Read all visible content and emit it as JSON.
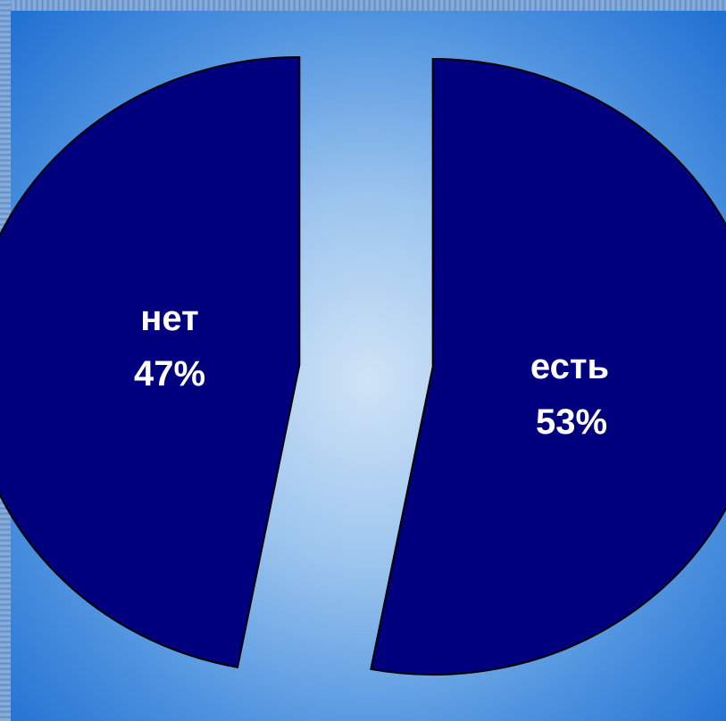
{
  "chart_data": {
    "type": "pie",
    "slices": [
      {
        "label": "нет",
        "value": 47,
        "value_label": "47%"
      },
      {
        "label": "есть",
        "value": 53,
        "value_label": "53%"
      }
    ],
    "title": "",
    "legend": "none",
    "colors": {
      "slice_fill": "#00007f",
      "slice_stroke": "#000000",
      "label": "#ffffff"
    }
  }
}
